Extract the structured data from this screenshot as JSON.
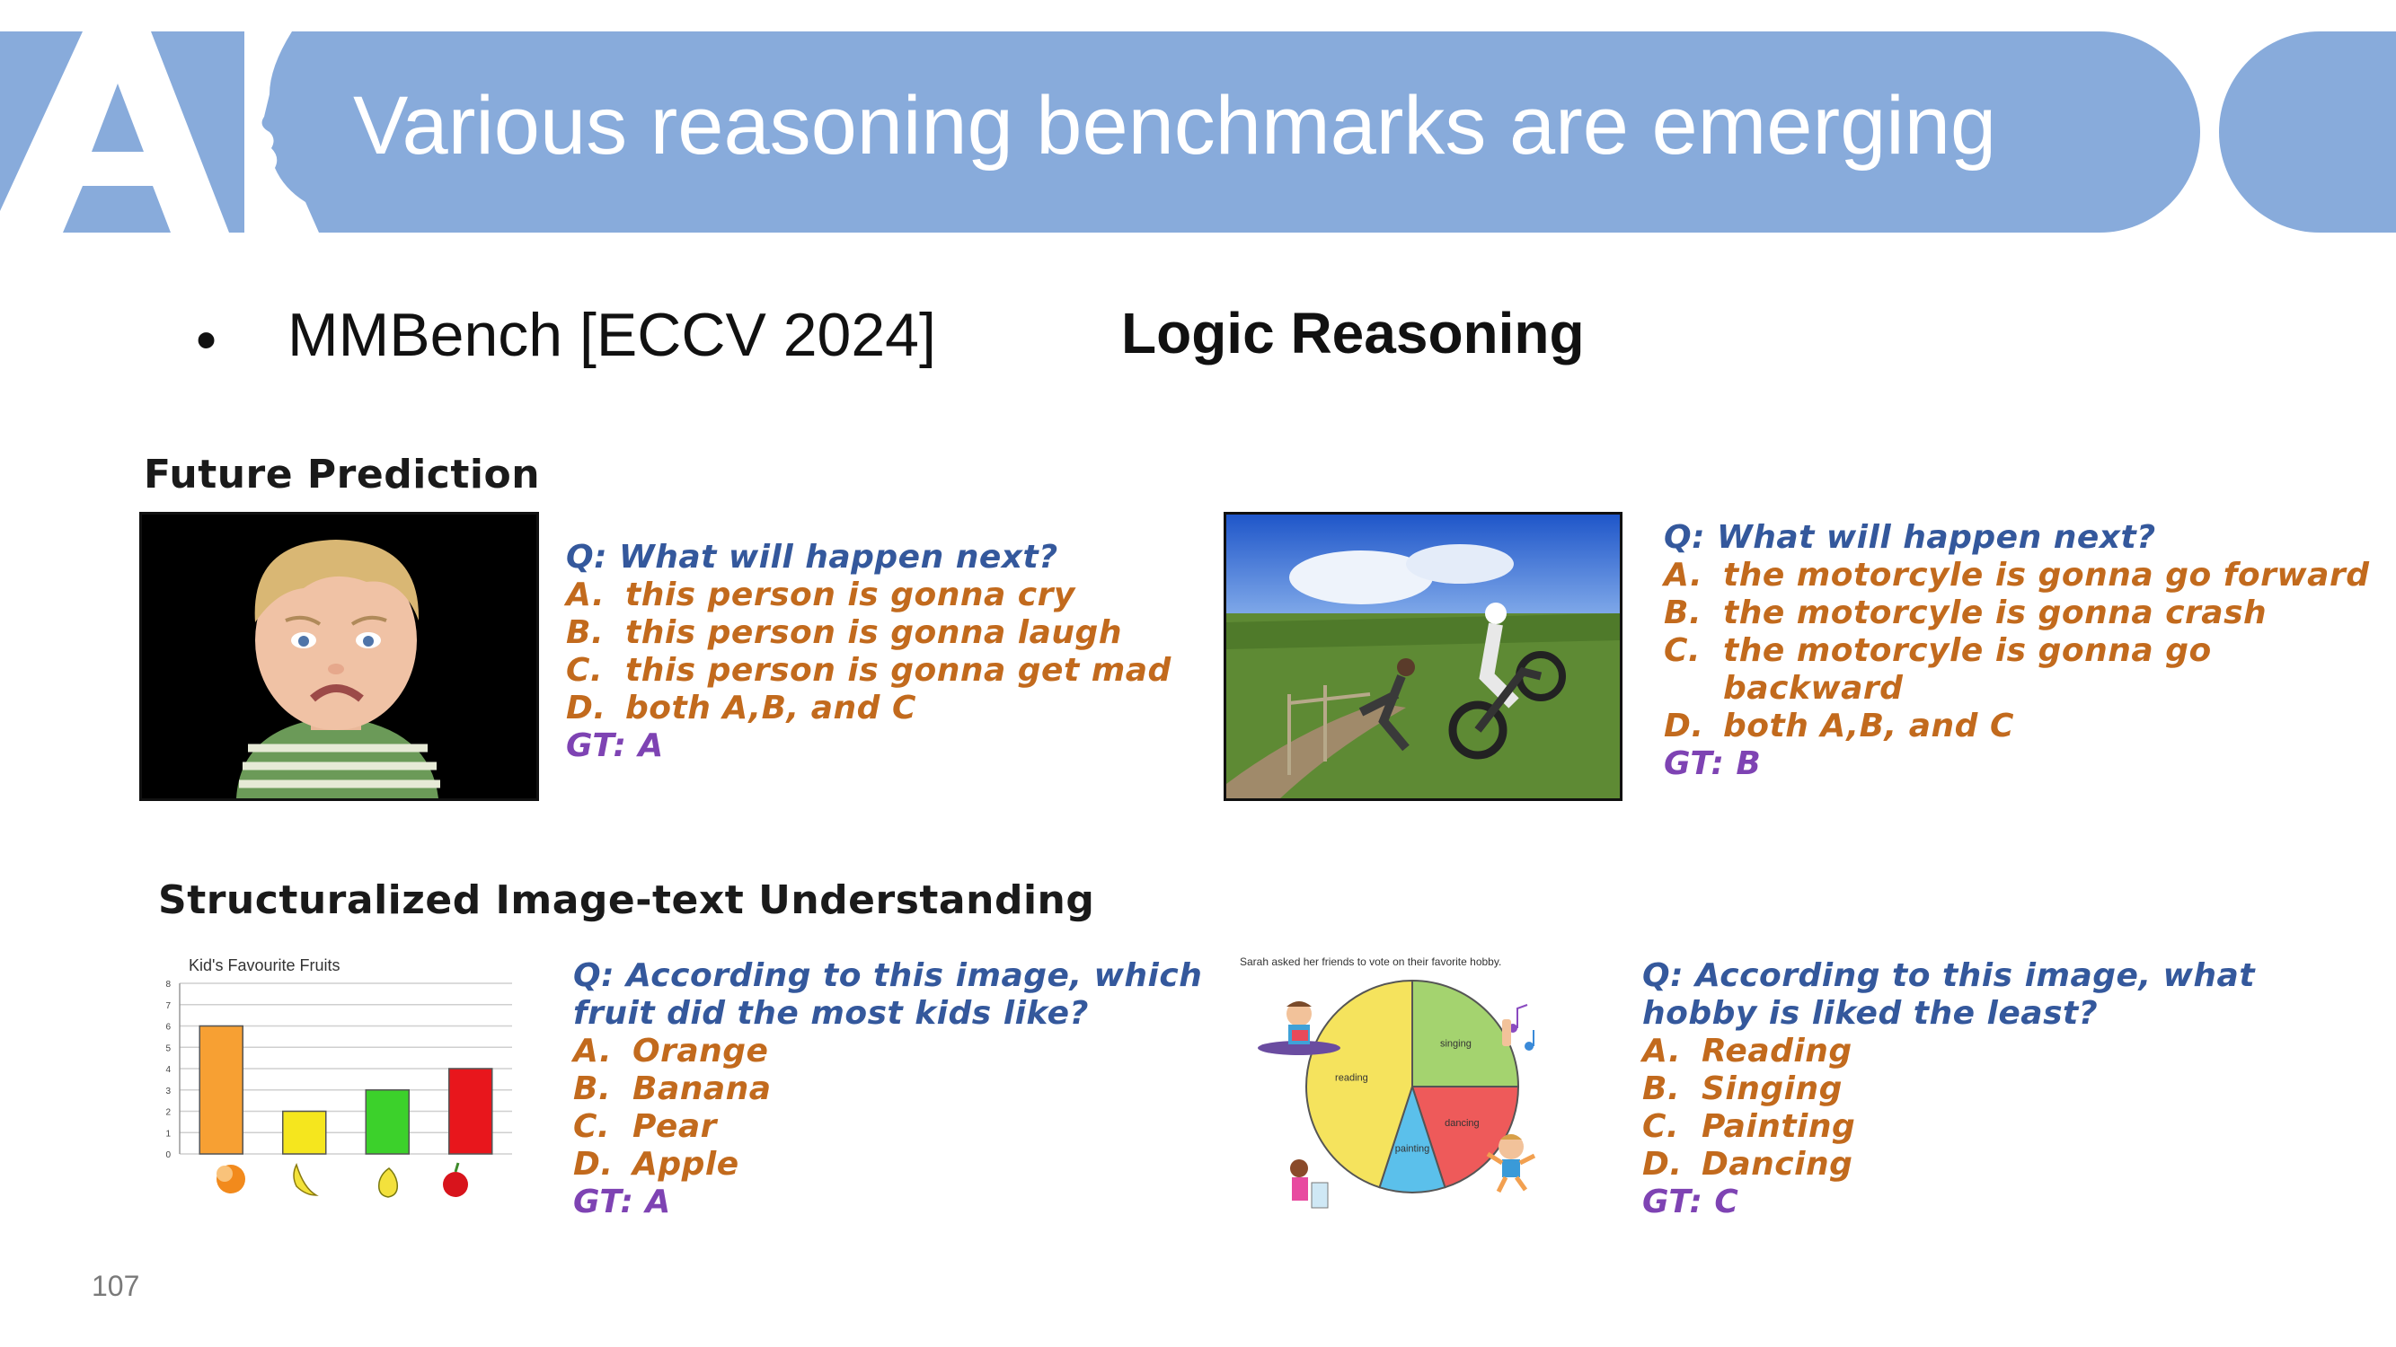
{
  "header": {
    "logo_text": "AI",
    "title": "Various reasoning benchmarks are emerging"
  },
  "bullet": {
    "glyph": "•",
    "text": "MMBench [ECCV 2024]"
  },
  "category": "Logic Reasoning",
  "sections": {
    "future_prediction": "Future Prediction",
    "structuralized": "Structuralized Image-text Understanding"
  },
  "panels": {
    "crying_child": {
      "question": "Q: What will happen next?",
      "options": [
        {
          "letter": "A.",
          "text": "this person is gonna cry"
        },
        {
          "letter": "B.",
          "text": "this person is gonna laugh"
        },
        {
          "letter": "C.",
          "text": "this person is gonna get mad"
        },
        {
          "letter": "D.",
          "text": "both A,B, and C"
        }
      ],
      "gt": "GT: A"
    },
    "motorcycle": {
      "question": "Q: What will happen next?",
      "options": [
        {
          "letter": "A.",
          "text": "the motorcyle is gonna go forward"
        },
        {
          "letter": "B.",
          "text": "the motorcyle is gonna crash"
        },
        {
          "letter": "C.",
          "text": "the motorcyle is gonna go"
        },
        {
          "letter": "",
          "text": "backward"
        },
        {
          "letter": "D.",
          "text": "both A,B, and C"
        }
      ],
      "gt": "GT: B"
    },
    "fruits": {
      "question_line1": "Q: According to this image, which",
      "question_line2": "fruit did the most kids like?",
      "options": [
        {
          "letter": "A.",
          "text": "Orange"
        },
        {
          "letter": "B.",
          "text": "Banana"
        },
        {
          "letter": "C.",
          "text": "Pear"
        },
        {
          "letter": "D.",
          "text": "Apple"
        }
      ],
      "gt": "GT: A"
    },
    "hobby": {
      "question_line1": "Q: According to this image, what",
      "question_line2": "hobby is liked the least?",
      "options": [
        {
          "letter": "A.",
          "text": "Reading"
        },
        {
          "letter": "B.",
          "text": "Singing"
        },
        {
          "letter": "C.",
          "text": "Painting"
        },
        {
          "letter": "D.",
          "text": "Dancing"
        }
      ],
      "gt": "GT: C"
    }
  },
  "chart_data": [
    {
      "type": "bar",
      "title": "Kid's Favourite Fruits",
      "categories": [
        "orange",
        "banana",
        "pear",
        "apple"
      ],
      "values": [
        6,
        2,
        3,
        4
      ],
      "colors": [
        "#f7a033",
        "#f5e61e",
        "#3cd12b",
        "#e8161c"
      ],
      "y_ticks": [
        "0",
        "1",
        "2",
        "3",
        "4",
        "5",
        "6",
        "7",
        "8"
      ],
      "ylim": [
        0,
        8
      ],
      "grid": true
    },
    {
      "type": "pie",
      "title": "Sarah asked her friends to vote on their favorite hobby.",
      "categories": [
        "reading",
        "singing",
        "dancing",
        "painting"
      ],
      "values": [
        0.45,
        0.25,
        0.2,
        0.1
      ],
      "colors": [
        "#f5e35d",
        "#a4d36f",
        "#ee5a5a",
        "#5bc0eb"
      ]
    }
  ],
  "page_number": "107",
  "colors": {
    "header_band": "#88abdb",
    "question": "#34589c",
    "option": "#c26a1d",
    "gt": "#7e43b3"
  }
}
